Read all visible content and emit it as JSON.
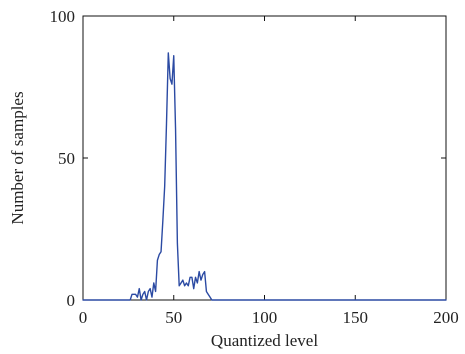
{
  "chart_data": {
    "type": "line",
    "title": "",
    "xlabel": "Quantized level",
    "ylabel": "Number of samples",
    "xlim": [
      0,
      200
    ],
    "ylim": [
      0,
      100
    ],
    "grid": false,
    "x_ticks": [
      0,
      50,
      100,
      150,
      200
    ],
    "y_ticks": [
      0,
      50,
      100
    ],
    "x_tick_labels": [
      "0",
      "50",
      "100",
      "150",
      "200"
    ],
    "y_tick_labels": [
      "0",
      "50",
      "100"
    ],
    "series": [
      {
        "color": "#2b4aa3",
        "points": [
          [
            0,
            0
          ],
          [
            26,
            0
          ],
          [
            27,
            2
          ],
          [
            28,
            2
          ],
          [
            29,
            2
          ],
          [
            30,
            1
          ],
          [
            31,
            4
          ],
          [
            32,
            0
          ],
          [
            33,
            2
          ],
          [
            34,
            3
          ],
          [
            35,
            0
          ],
          [
            36,
            3
          ],
          [
            37,
            4
          ],
          [
            38,
            1
          ],
          [
            39,
            6
          ],
          [
            40,
            3
          ],
          [
            41,
            14
          ],
          [
            42,
            16
          ],
          [
            43,
            17
          ],
          [
            44,
            28
          ],
          [
            45,
            40
          ],
          [
            46,
            62
          ],
          [
            47,
            87
          ],
          [
            48,
            78
          ],
          [
            49,
            76
          ],
          [
            50,
            86
          ],
          [
            51,
            60
          ],
          [
            52,
            20
          ],
          [
            53,
            5
          ],
          [
            54,
            6
          ],
          [
            55,
            7
          ],
          [
            56,
            5
          ],
          [
            57,
            6
          ],
          [
            58,
            5
          ],
          [
            59,
            8
          ],
          [
            60,
            8
          ],
          [
            61,
            4
          ],
          [
            62,
            8
          ],
          [
            63,
            6
          ],
          [
            64,
            10
          ],
          [
            65,
            7
          ],
          [
            66,
            9
          ],
          [
            67,
            10
          ],
          [
            68,
            3
          ],
          [
            69,
            2
          ],
          [
            70,
            1
          ],
          [
            71,
            0
          ],
          [
            72,
            0
          ],
          [
            200,
            0
          ]
        ]
      }
    ]
  }
}
